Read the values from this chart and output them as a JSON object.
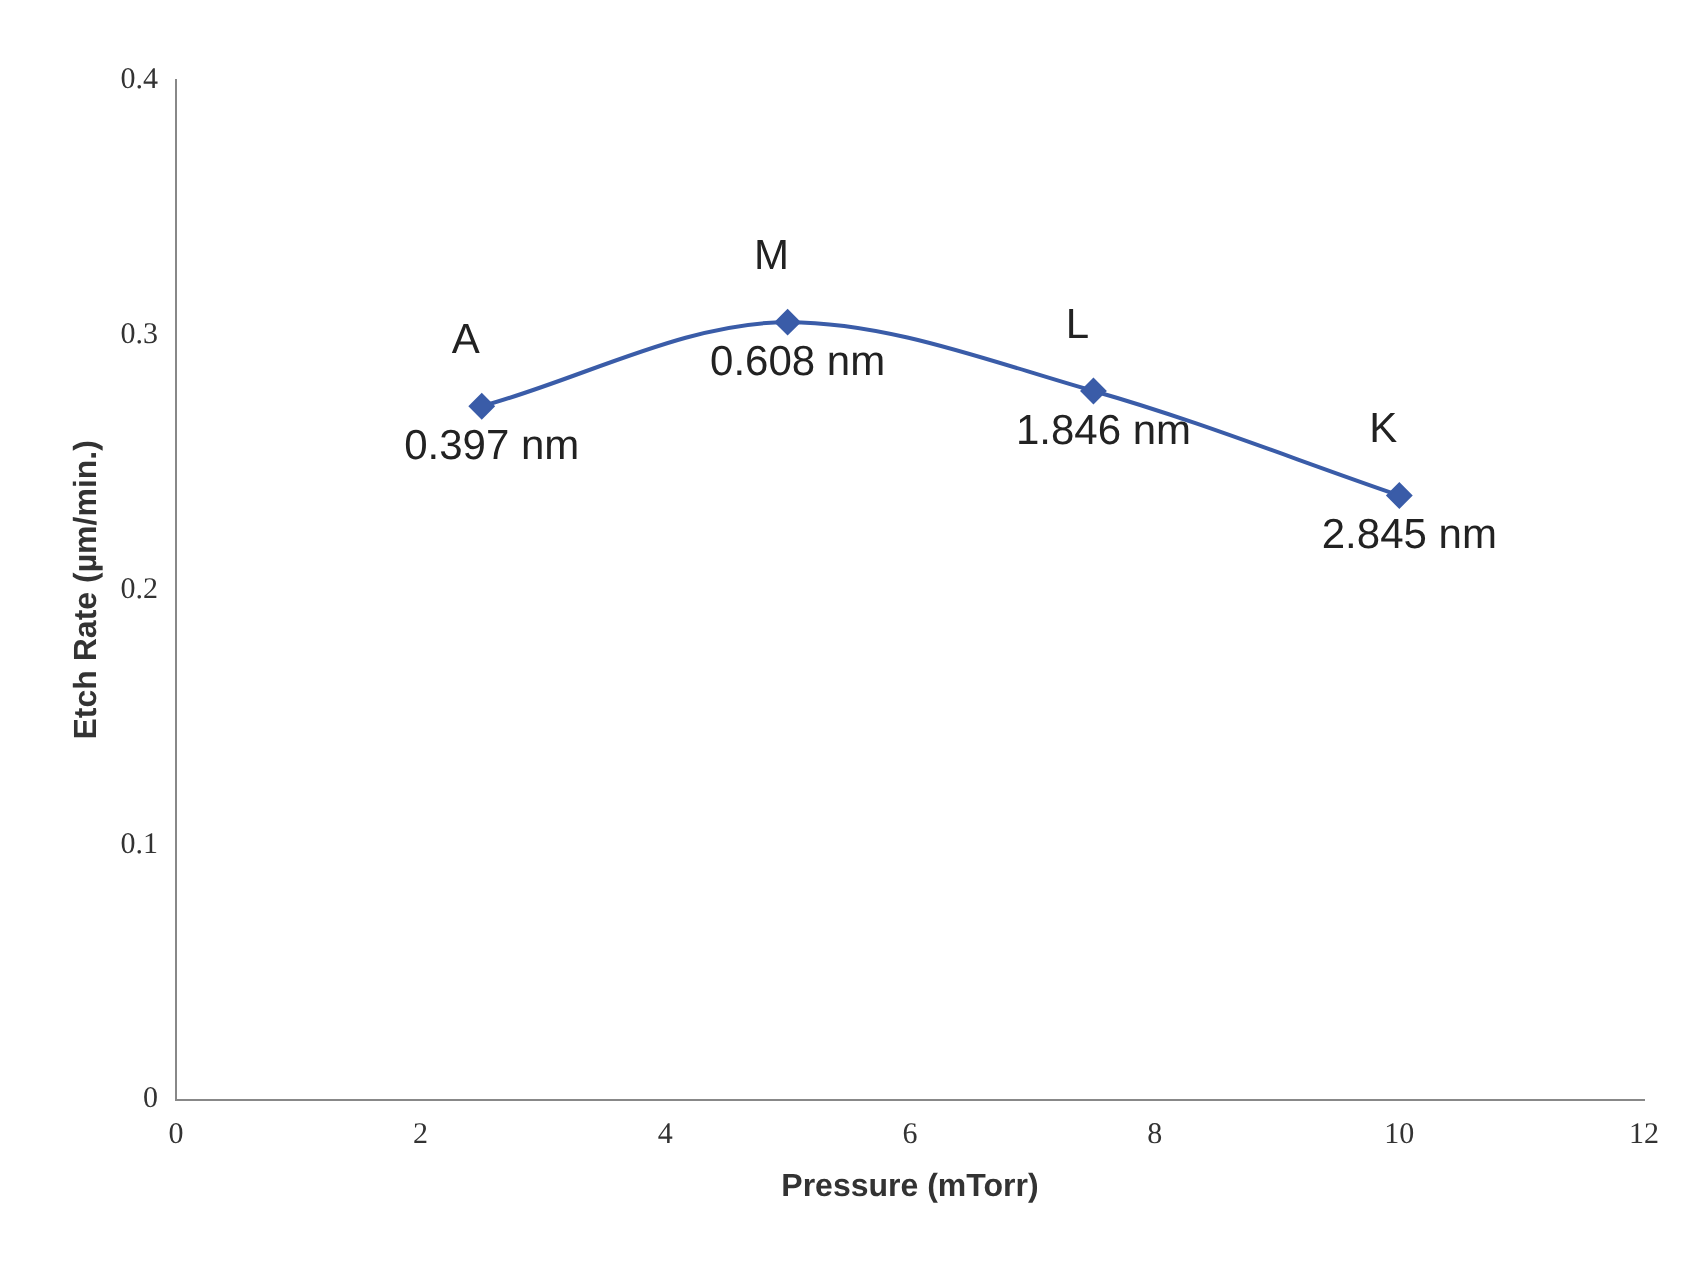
{
  "chart_data": {
    "type": "line",
    "xlabel": "Pressure (mTorr)",
    "ylabel": "Etch Rate (µm/min.)",
    "x": [
      2.5,
      5,
      7.5,
      10
    ],
    "series": [
      {
        "color": "#3a5ca8",
        "values": [
          0.272,
          0.305,
          0.278,
          0.237
        ]
      }
    ],
    "xlim": [
      0,
      12
    ],
    "xticks": [
      0,
      2,
      4,
      6,
      8,
      10,
      12
    ],
    "ylim": [
      0,
      0.4
    ],
    "yticks": [
      0,
      0.1,
      0.2,
      0.3,
      0.4
    ],
    "grid": false,
    "legend": false,
    "marker": "diamond",
    "line_style": "solid",
    "annotations": [
      {
        "text": "A",
        "x": 2.5,
        "y": 0.272
      },
      {
        "text": "0.397 nm",
        "x": 2.5,
        "y": 0.272
      },
      {
        "text": "M",
        "x": 5,
        "y": 0.305
      },
      {
        "text": "0.608 nm",
        "x": 5,
        "y": 0.305
      },
      {
        "text": "L",
        "x": 7.5,
        "y": 0.278
      },
      {
        "text": "1.846 nm",
        "x": 7.5,
        "y": 0.278
      },
      {
        "text": "K",
        "x": 10,
        "y": 0.237
      },
      {
        "text": "2.845 nm",
        "x": 10,
        "y": 0.237
      }
    ]
  }
}
